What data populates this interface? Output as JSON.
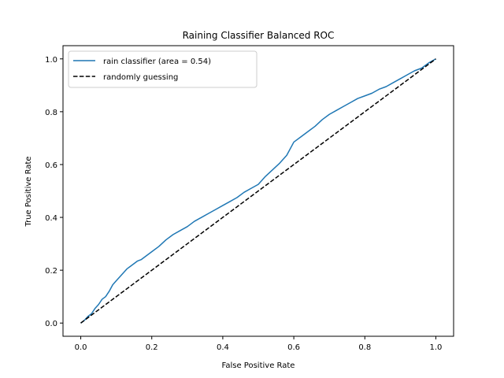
{
  "chart_data": {
    "type": "line",
    "title": "Raining Classifier Balanced ROC",
    "xlabel": "False Positive Rate",
    "ylabel": "True Positive Rate",
    "xlim": [
      -0.05,
      1.05
    ],
    "ylim": [
      -0.05,
      1.05
    ],
    "xticks": [
      0.0,
      0.2,
      0.4,
      0.6,
      0.8,
      1.0
    ],
    "yticks": [
      0.0,
      0.2,
      0.4,
      0.6,
      0.8,
      1.0
    ],
    "xtick_labels": [
      "0.0",
      "0.2",
      "0.4",
      "0.6",
      "0.8",
      "1.0"
    ],
    "ytick_labels": [
      "0.0",
      "0.2",
      "0.4",
      "0.6",
      "0.8",
      "1.0"
    ],
    "grid": false,
    "legend_position": "upper-left",
    "series": [
      {
        "name": "rain classifier (area = 0.54)",
        "color": "#1f77b4",
        "style": "solid",
        "x": [
          0.0,
          0.01,
          0.02,
          0.03,
          0.04,
          0.05,
          0.06,
          0.07,
          0.08,
          0.09,
          0.1,
          0.11,
          0.12,
          0.13,
          0.14,
          0.15,
          0.16,
          0.17,
          0.18,
          0.2,
          0.22,
          0.24,
          0.26,
          0.28,
          0.3,
          0.32,
          0.34,
          0.36,
          0.38,
          0.4,
          0.42,
          0.44,
          0.46,
          0.48,
          0.5,
          0.52,
          0.54,
          0.56,
          0.58,
          0.6,
          0.62,
          0.64,
          0.66,
          0.68,
          0.7,
          0.72,
          0.74,
          0.76,
          0.78,
          0.8,
          0.82,
          0.84,
          0.86,
          0.88,
          0.9,
          0.92,
          0.94,
          0.96,
          0.98,
          1.0
        ],
        "y": [
          0.0,
          0.01,
          0.025,
          0.035,
          0.055,
          0.07,
          0.09,
          0.1,
          0.12,
          0.145,
          0.16,
          0.175,
          0.19,
          0.205,
          0.215,
          0.225,
          0.235,
          0.24,
          0.25,
          0.27,
          0.29,
          0.315,
          0.335,
          0.35,
          0.365,
          0.385,
          0.4,
          0.415,
          0.43,
          0.445,
          0.46,
          0.475,
          0.495,
          0.51,
          0.525,
          0.555,
          0.58,
          0.605,
          0.635,
          0.685,
          0.705,
          0.725,
          0.745,
          0.77,
          0.79,
          0.805,
          0.82,
          0.835,
          0.85,
          0.86,
          0.87,
          0.885,
          0.895,
          0.91,
          0.925,
          0.94,
          0.955,
          0.965,
          0.985,
          1.0
        ]
      },
      {
        "name": "randomly guessing",
        "color": "#000000",
        "style": "dashed",
        "x": [
          0.0,
          1.0
        ],
        "y": [
          0.0,
          1.0
        ]
      }
    ]
  }
}
